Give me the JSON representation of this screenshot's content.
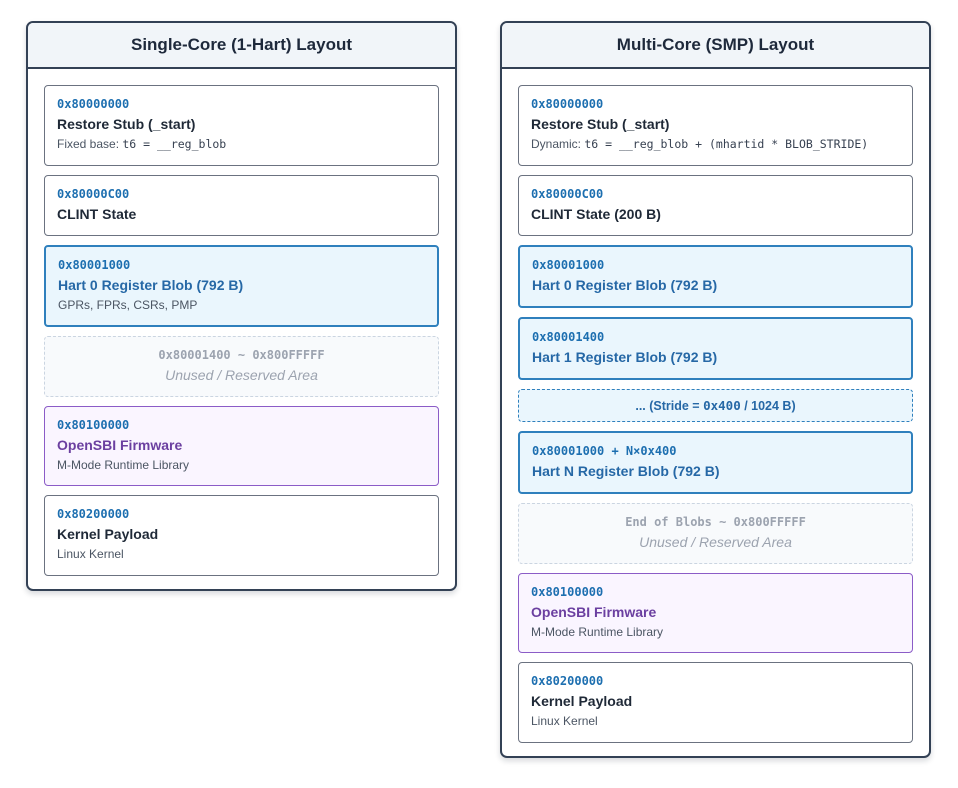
{
  "single": {
    "title": "Single-Core (1-Hart) Layout",
    "blocks": [
      {
        "addr": "0x80000000",
        "title": "Restore Stub (_start)",
        "sub_prefix": "Fixed base: ",
        "sub_code": "t6 = __reg_blob"
      },
      {
        "addr": "0x80000C00",
        "title": "CLINT State"
      },
      {
        "addr": "0x80001000",
        "title": "Hart 0 Register Blob (792 B)",
        "sub": "GPRs, FPRs, CSRs, PMP"
      },
      {
        "range": "0x80001400 ~ 0x800FFFFF",
        "label": "Unused / Reserved Area"
      },
      {
        "addr": "0x80100000",
        "title": "OpenSBI Firmware",
        "sub": "M-Mode Runtime Library"
      },
      {
        "addr": "0x80200000",
        "title": "Kernel Payload",
        "sub": "Linux Kernel"
      }
    ]
  },
  "smp": {
    "title": "Multi-Core (SMP) Layout",
    "blocks": [
      {
        "addr": "0x80000000",
        "title": "Restore Stub (_start)",
        "sub_prefix": "Dynamic: ",
        "sub_code": "t6 = __reg_blob + (mhartid * BLOB_STRIDE)"
      },
      {
        "addr": "0x80000C00",
        "title": "CLINT State (200 B)"
      },
      {
        "addr": "0x80001000",
        "title": "Hart 0 Register Blob (792 B)"
      },
      {
        "addr": "0x80001400",
        "title": "Hart 1 Register Blob (792 B)"
      },
      {
        "stride_prefix": "... (Stride = ",
        "stride_code": "0x400",
        "stride_suffix": " / 1024 B)"
      },
      {
        "addr": "0x80001000 + N×0x400",
        "title": "Hart N Register Blob (792 B)"
      },
      {
        "range": "End of Blobs ~ 0x800FFFFF",
        "label": "Unused / Reserved Area"
      },
      {
        "addr": "0x80100000",
        "title": "OpenSBI Firmware",
        "sub": "M-Mode Runtime Library"
      },
      {
        "addr": "0x80200000",
        "title": "Kernel Payload",
        "sub": "Linux Kernel"
      }
    ]
  },
  "colors": {
    "address": "#1d6fb0",
    "hart_border": "#2f80bd",
    "hart_fill": "#eaf6fd",
    "firmware_border": "#8b5cc7",
    "firmware_fill": "#faf5ff",
    "panel_border": "#334155"
  }
}
